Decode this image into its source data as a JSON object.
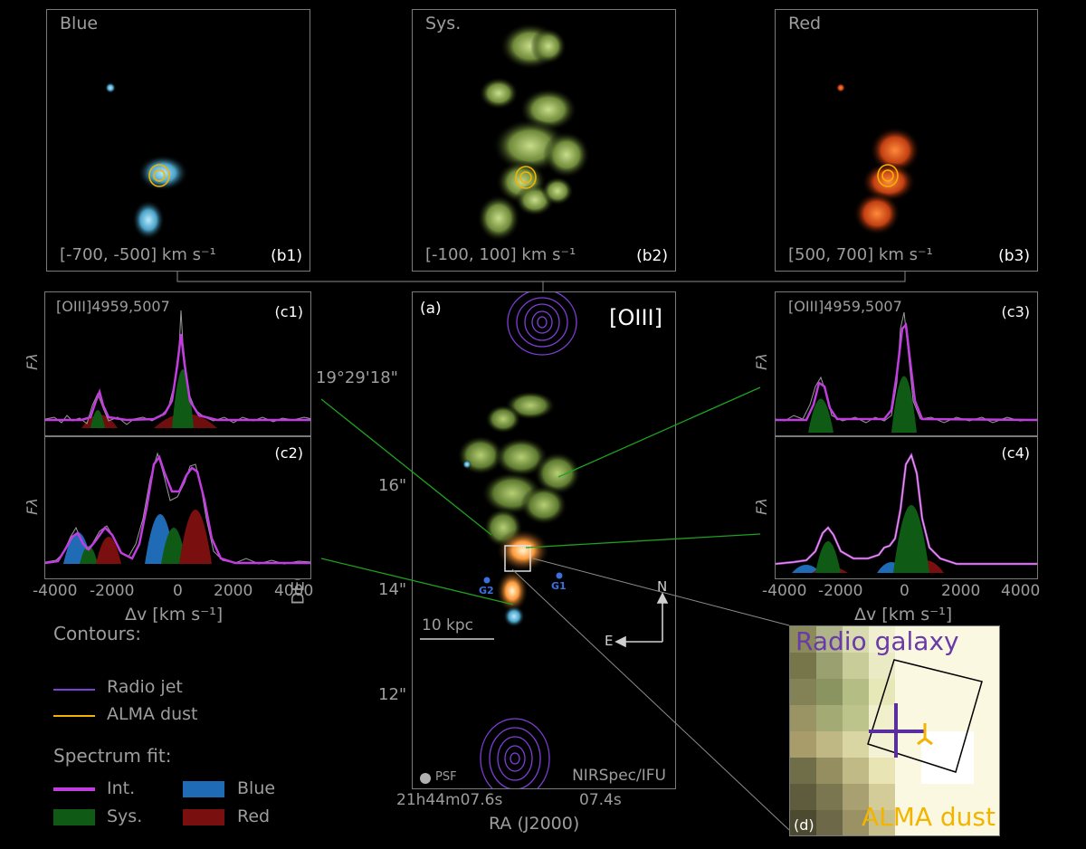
{
  "panels": {
    "b1": {
      "title": "Blue",
      "range": "[-700, -500] km s⁻¹",
      "tag": "(b1)"
    },
    "b2": {
      "title": "Sys.",
      "range": "[-100, 100] km s⁻¹",
      "tag": "(b2)"
    },
    "b3": {
      "title": "Red",
      "range": "[500, 700] km s⁻¹",
      "tag": "(b3)"
    },
    "a": {
      "tag": "(a)",
      "line": "[OIII]",
      "instrument": "NIRSpec/IFU",
      "psf": "PSF",
      "scalebar": "10 kpc",
      "north": "N",
      "east": "E",
      "g1": "G1",
      "g2": "G2",
      "dec_ticks": [
        "19°29'18\"",
        "16\"",
        "14\"",
        "12\""
      ],
      "ra_ticks": [
        "21h44m07.6s",
        "07.4s"
      ],
      "ra_label": "RA (J2000)",
      "dec_label": "DEC (J2000)"
    },
    "c1": {
      "title": "[OIII]4959,5007",
      "tag": "(c1)",
      "ylabel": "Fλ"
    },
    "c2": {
      "tag": "(c2)",
      "ylabel": "Fλ"
    },
    "c3": {
      "title": "[OIII]4959,5007",
      "tag": "(c3)",
      "ylabel": "Fλ"
    },
    "c4": {
      "tag": "(c4)",
      "ylabel": "Fλ"
    },
    "d": {
      "tag": "(d)",
      "radio_label": "Radio galaxy",
      "alma_label": "ALMA dust"
    }
  },
  "spectra_axis": {
    "xlabel": "Δv [km s⁻¹]",
    "ticks": [
      "-4000",
      "-2000",
      "0",
      "2000",
      "4000"
    ]
  },
  "legend": {
    "contours_title": "Contours:",
    "contours": [
      {
        "label": "Radio jet",
        "color": "#7f3fd6"
      },
      {
        "label": "ALMA dust",
        "color": "#f2b400"
      }
    ],
    "fit_title": "Spectrum fit:",
    "fit": [
      {
        "label": "Int.",
        "color": "#c23de0"
      },
      {
        "label": "Blue",
        "color": "#1f6bb5"
      },
      {
        "label": "Sys.",
        "color": "#0f5a14"
      },
      {
        "label": "Red",
        "color": "#7a0f0f"
      }
    ]
  },
  "colors": {
    "panel_border": "#7a7a7a",
    "connector": "#1fa01f",
    "text_grey": "#9d9d9d"
  }
}
